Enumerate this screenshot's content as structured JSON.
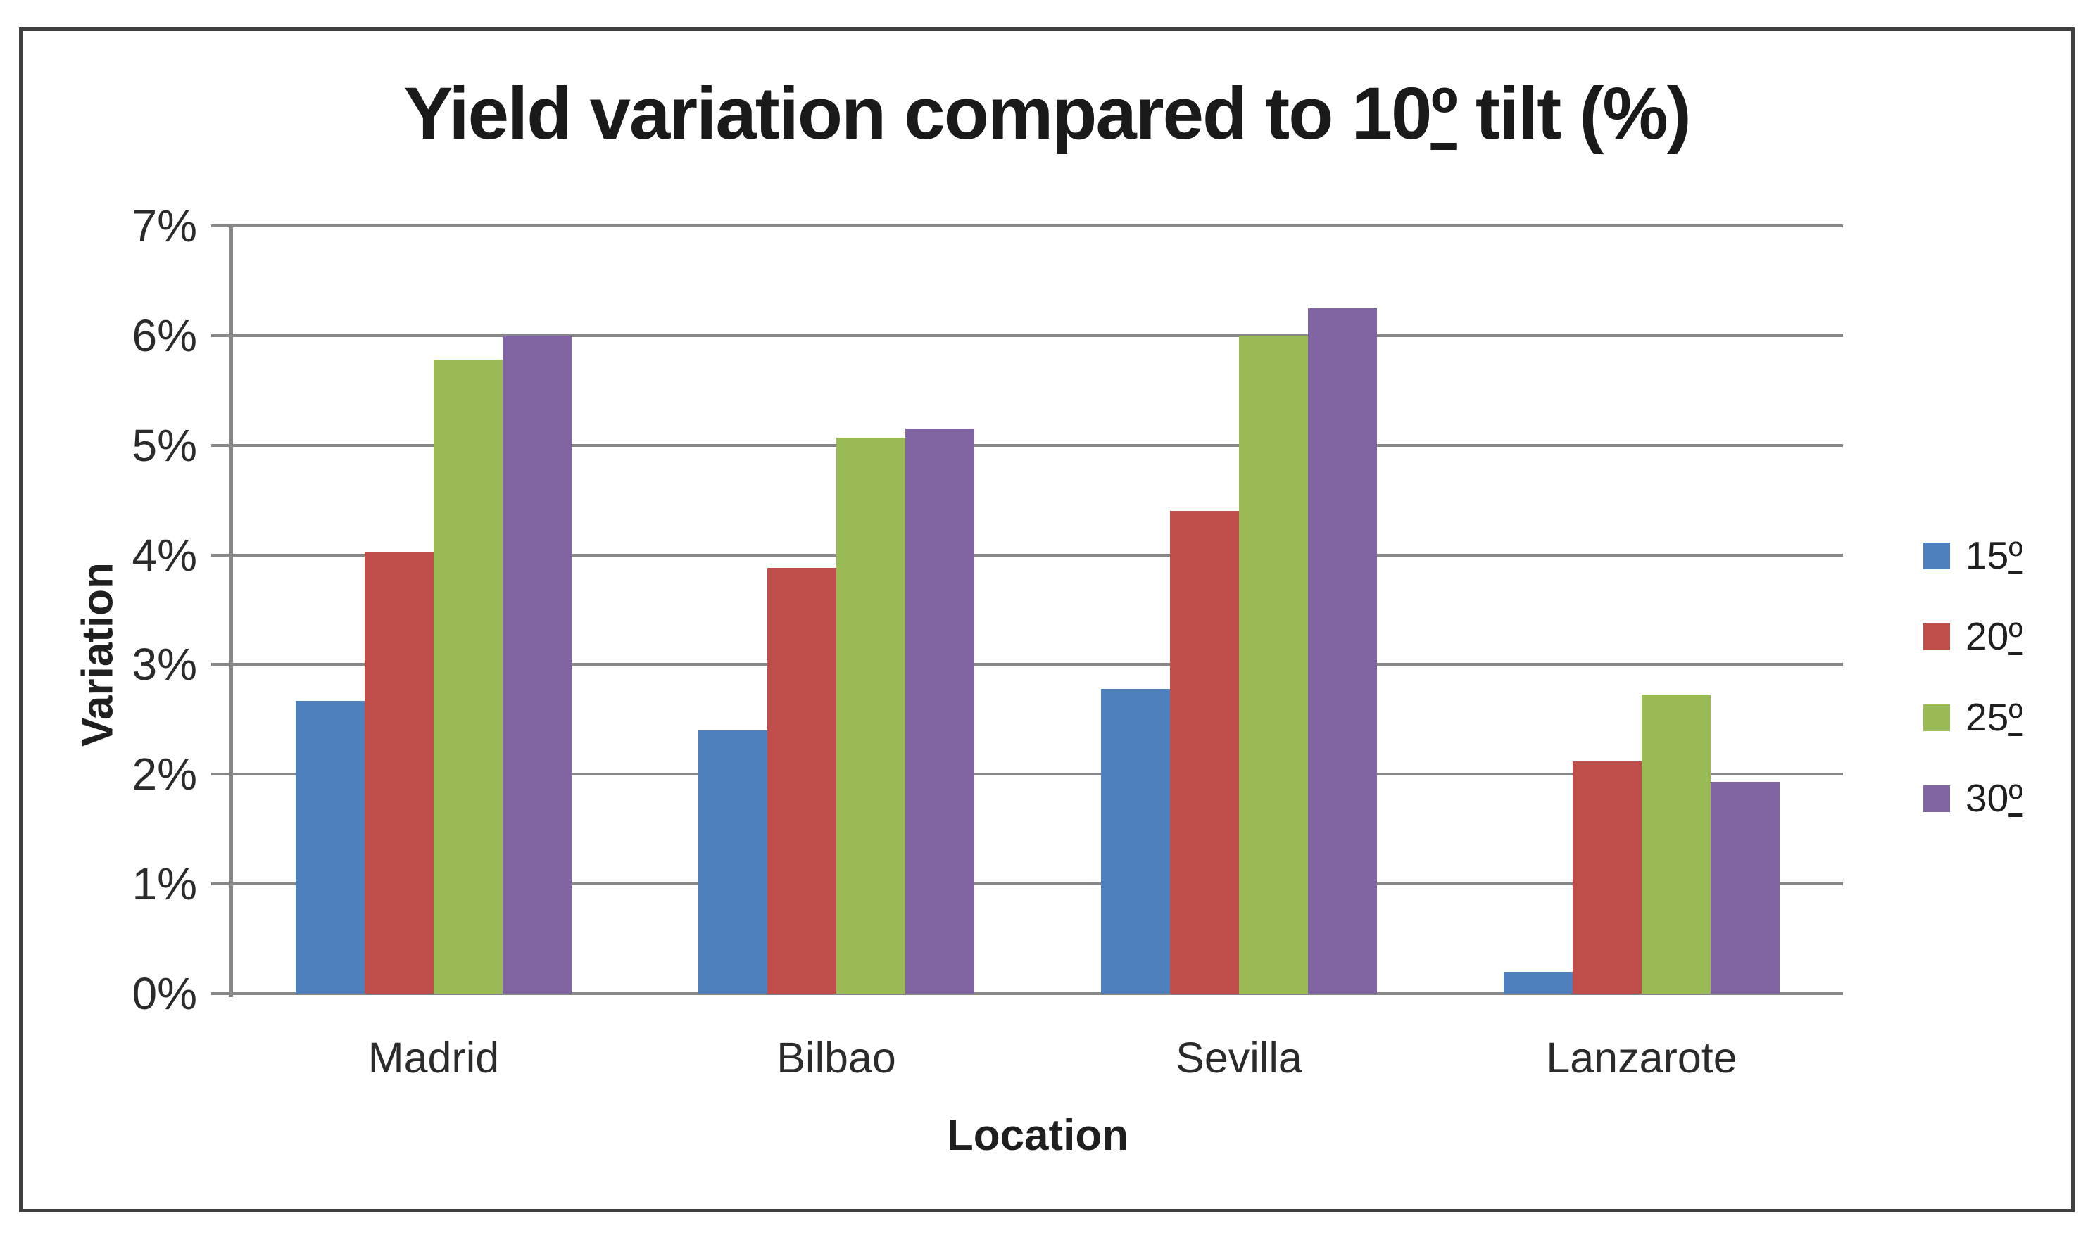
{
  "page": {
    "background_color": "#ffffff",
    "frame_border_color": "#3f3f3f",
    "gridline_color": "#878787",
    "axis_line_color": "#878787"
  },
  "chart_data": {
    "type": "bar",
    "title": {
      "prefix": "Yield variation compared to 10",
      "ordinal": "º",
      "suffix": " tilt (%)"
    },
    "xlabel": "Location",
    "ylabel": "Variation",
    "categories": [
      "Madrid",
      "Bilbao",
      "Sevilla",
      "Lanzarote"
    ],
    "series": [
      {
        "name": "15",
        "ordinal": "º",
        "color": "#4e80bd",
        "values": [
          2.67,
          2.4,
          2.78,
          0.2
        ]
      },
      {
        "name": "20",
        "ordinal": "º",
        "color": "#bf4d4a",
        "values": [
          4.03,
          3.88,
          4.4,
          2.12
        ]
      },
      {
        "name": "25",
        "ordinal": "º",
        "color": "#9aba55",
        "values": [
          5.78,
          5.07,
          6.0,
          2.73
        ]
      },
      {
        "name": "30",
        "ordinal": "º",
        "color": "#8164a2",
        "values": [
          6.0,
          5.15,
          6.25,
          1.93
        ]
      }
    ],
    "ylim": [
      0,
      7
    ],
    "ytick_step": 1,
    "ytick_labels": [
      "0%",
      "1%",
      "2%",
      "3%",
      "4%",
      "5%",
      "6%",
      "7%"
    ],
    "grid": true,
    "legend_position": "right",
    "unit": "percent"
  }
}
